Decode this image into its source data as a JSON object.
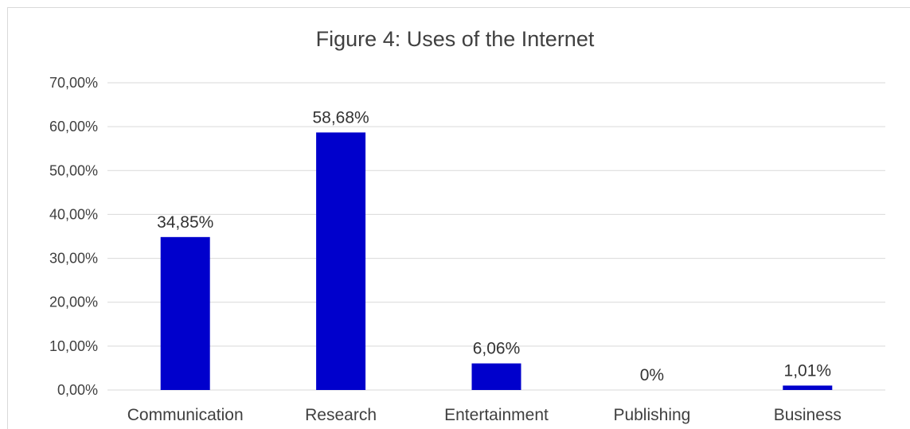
{
  "chart_data": {
    "type": "bar",
    "title": "Figure 4: Uses of the Internet",
    "xlabel": "",
    "ylabel": "",
    "categories": [
      "Communication",
      "Research",
      "Entertainment",
      "Publishing",
      "Business"
    ],
    "values": [
      34.85,
      58.68,
      6.06,
      0,
      1.01
    ],
    "data_labels": [
      "34,85%",
      "58,68%",
      "6,06%",
      "0%",
      "1,01%"
    ],
    "ylim": [
      0,
      70
    ],
    "yticks": [
      0,
      10,
      20,
      30,
      40,
      50,
      60,
      70
    ],
    "ytick_labels": [
      "0,00%",
      "10,00%",
      "20,00%",
      "30,00%",
      "40,00%",
      "50,00%",
      "60,00%",
      "70,00%"
    ],
    "grid": true,
    "legend": "none",
    "bar_color": "#0000CC",
    "gridline_color": "#d9d9d9"
  }
}
